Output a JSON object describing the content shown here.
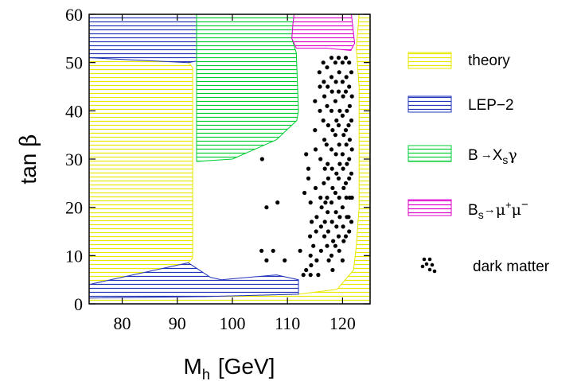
{
  "chart_data": {
    "type": "scatter",
    "title": "",
    "xlabel_main": "M",
    "xlabel_sub": "h",
    "xlabel_rest": "[GeV]",
    "ylabel_main": "tan",
    "ylabel_greek": "β",
    "xlim": [
      74,
      125
    ],
    "ylim": [
      0,
      60
    ],
    "x_ticks": [
      "80",
      "90",
      "100",
      "110",
      "120"
    ],
    "y_ticks": [
      "0",
      "10",
      "20",
      "30",
      "40",
      "50",
      "60"
    ],
    "grid": false,
    "legend_position": "right",
    "regions": [
      {
        "name": "theory",
        "color": "#ffff00",
        "polygons": [
          [
            [
              74,
              0
            ],
            [
              74,
              51
            ],
            [
              92,
              50
            ],
            [
              92.8,
              49
            ],
            [
              92.8,
              9.5
            ],
            [
              92,
              8.5
            ],
            [
              74,
              4
            ],
            [
              74,
              3
            ]
          ],
          [
            [
              74,
              0
            ],
            [
              74,
              1.2
            ],
            [
              95,
              1.5
            ],
            [
              112,
              2
            ],
            [
              119,
              3
            ],
            [
              122,
              7
            ],
            [
              122.5,
              12
            ],
            [
              123,
              20
            ],
            [
              123,
              45
            ],
            [
              122.5,
              53
            ],
            [
              123,
              60
            ],
            [
              125,
              60
            ],
            [
              125,
              0
            ]
          ]
        ]
      },
      {
        "name": "LEP-2",
        "color": "#2233bb",
        "polygons": [
          [
            [
              74,
              51
            ],
            [
              74,
              60
            ],
            [
              93.5,
              60
            ],
            [
              93.5,
              50.3
            ],
            [
              92,
              50
            ]
          ],
          [
            [
              74,
              1.2
            ],
            [
              74,
              4
            ],
            [
              92,
              8.5
            ],
            [
              96,
              5.5
            ],
            [
              98,
              5
            ],
            [
              103,
              5.5
            ],
            [
              108,
              6
            ],
            [
              112,
              5
            ],
            [
              112,
              2
            ],
            [
              95,
              1.5
            ]
          ]
        ]
      },
      {
        "name": "B→Xsγ",
        "color": "#00cc33",
        "polygons": [
          [
            [
              93.5,
              60
            ],
            [
              111.2,
              60
            ],
            [
              111,
              58
            ],
            [
              110.8,
              55
            ],
            [
              111.6,
              52
            ],
            [
              112,
              40
            ],
            [
              111.7,
              38
            ],
            [
              108,
              34
            ],
            [
              104,
              32
            ],
            [
              100,
              30
            ],
            [
              93.5,
              29.5
            ]
          ]
        ]
      },
      {
        "name": "Bs→μ+μ−",
        "color": "#dd00cc",
        "polygons": [
          [
            [
              111.2,
              60
            ],
            [
              121.6,
              60
            ],
            [
              122.2,
              54
            ],
            [
              121.5,
              52.5
            ],
            [
              117,
              53
            ],
            [
              112.5,
              53
            ],
            [
              111.6,
              53
            ],
            [
              110.8,
              55
            ],
            [
              111,
              58
            ]
          ]
        ]
      }
    ],
    "dark_matter_points": [
      [
        105.4,
        30
      ],
      [
        106.2,
        20
      ],
      [
        108.2,
        21
      ],
      [
        105.3,
        11
      ],
      [
        106.2,
        9
      ],
      [
        107.4,
        11
      ],
      [
        109.5,
        9
      ],
      [
        112.3,
        11
      ],
      [
        112.9,
        6
      ],
      [
        113.4,
        7
      ],
      [
        113.4,
        31
      ],
      [
        113.8,
        28
      ],
      [
        113.8,
        26
      ],
      [
        113.1,
        23
      ],
      [
        114.2,
        21
      ],
      [
        114.4,
        17
      ],
      [
        114.1,
        14
      ],
      [
        114.7,
        12
      ],
      [
        114.2,
        10
      ],
      [
        114.3,
        8
      ],
      [
        114.2,
        6
      ],
      [
        115,
        42
      ],
      [
        115,
        36
      ],
      [
        115.1,
        32
      ],
      [
        115.1,
        24
      ],
      [
        115.3,
        18
      ],
      [
        115.2,
        15
      ],
      [
        115.3,
        9
      ],
      [
        115.6,
        6
      ],
      [
        115.8,
        48
      ],
      [
        115.9,
        45
      ],
      [
        115.9,
        40
      ],
      [
        116,
        30
      ],
      [
        116,
        22
      ],
      [
        116.2,
        20
      ],
      [
        116.1,
        16
      ],
      [
        116.1,
        11
      ],
      [
        116.5,
        50
      ],
      [
        116.6,
        46
      ],
      [
        116.7,
        43
      ],
      [
        116.5,
        38
      ],
      [
        116.7,
        34
      ],
      [
        116.8,
        28
      ],
      [
        116.6,
        25
      ],
      [
        116.9,
        21
      ],
      [
        116.8,
        17
      ],
      [
        116.7,
        14
      ],
      [
        117.2,
        49
      ],
      [
        117.3,
        45
      ],
      [
        117.2,
        41
      ],
      [
        117.4,
        37
      ],
      [
        117.1,
        33
      ],
      [
        117.3,
        29
      ],
      [
        117.4,
        26
      ],
      [
        117.2,
        22
      ],
      [
        117.3,
        19
      ],
      [
        117.4,
        15
      ],
      [
        117.2,
        12
      ],
      [
        117.5,
        9
      ],
      [
        118,
        51
      ],
      [
        118,
        47
      ],
      [
        118.1,
        44
      ],
      [
        118,
        40
      ],
      [
        118.2,
        36
      ],
      [
        118,
        32
      ],
      [
        118.1,
        28
      ],
      [
        118.2,
        24
      ],
      [
        118,
        21
      ],
      [
        118.1,
        17
      ],
      [
        118.3,
        13
      ],
      [
        118,
        10
      ],
      [
        118.2,
        7
      ],
      [
        118.7,
        50
      ],
      [
        118.8,
        46
      ],
      [
        118.7,
        42
      ],
      [
        118.9,
        38
      ],
      [
        118.7,
        35
      ],
      [
        118.8,
        31
      ],
      [
        118.9,
        27
      ],
      [
        118.7,
        23
      ],
      [
        118.8,
        19
      ],
      [
        118.9,
        16
      ],
      [
        118.7,
        12
      ],
      [
        119.3,
        51
      ],
      [
        119.4,
        48
      ],
      [
        119.3,
        44
      ],
      [
        119.5,
        40
      ],
      [
        119.3,
        37
      ],
      [
        119.4,
        33
      ],
      [
        119.5,
        29
      ],
      [
        119.3,
        26
      ],
      [
        119.4,
        22
      ],
      [
        119.5,
        18
      ],
      [
        119.3,
        14
      ],
      [
        119.4,
        11
      ],
      [
        120,
        50
      ],
      [
        120,
        46
      ],
      [
        120.1,
        43
      ],
      [
        120,
        39
      ],
      [
        120.2,
        35
      ],
      [
        120,
        31
      ],
      [
        120.1,
        28
      ],
      [
        120.2,
        24
      ],
      [
        120,
        20
      ],
      [
        120.1,
        16
      ],
      [
        120.2,
        13
      ],
      [
        120,
        9
      ],
      [
        120.6,
        51
      ],
      [
        120.7,
        47
      ],
      [
        120.6,
        44
      ],
      [
        120.8,
        40
      ],
      [
        120.6,
        36
      ],
      [
        120.7,
        33
      ],
      [
        120.8,
        29
      ],
      [
        120.6,
        25
      ],
      [
        120.7,
        22
      ],
      [
        120.8,
        18
      ],
      [
        120.6,
        14
      ],
      [
        121.2,
        50
      ],
      [
        121.2,
        45
      ],
      [
        121.3,
        41
      ],
      [
        121.1,
        37
      ],
      [
        121.3,
        34
      ],
      [
        121.2,
        30
      ],
      [
        121.2,
        26
      ],
      [
        121.3,
        22
      ],
      [
        121.1,
        18
      ],
      [
        121.2,
        15
      ],
      [
        121.6,
        48
      ],
      [
        121.7,
        43
      ],
      [
        121.6,
        38
      ],
      [
        121.7,
        32
      ],
      [
        121.6,
        27
      ],
      [
        121.7,
        22
      ],
      [
        121.6,
        17
      ]
    ],
    "legend": [
      {
        "label": "theory",
        "kind": "swatch",
        "color": "#ffff00"
      },
      {
        "label": "LEP−2",
        "kind": "swatch",
        "color": "#2233bb"
      },
      {
        "label_main": "B",
        "label_arrow": "→",
        "label_x": "X",
        "label_sub": "s",
        "label_gamma": "γ",
        "kind": "swatch",
        "color": "#00cc33"
      },
      {
        "label_main": "B",
        "label_sub": "s",
        "label_arrow": "→",
        "label_mu1": "μ",
        "label_sup1": "+",
        "label_mu2": "μ",
        "label_sup2": "−",
        "kind": "swatch",
        "color": "#dd00cc"
      },
      {
        "label": "dark matter",
        "kind": "dots",
        "color": "#000000"
      }
    ]
  }
}
